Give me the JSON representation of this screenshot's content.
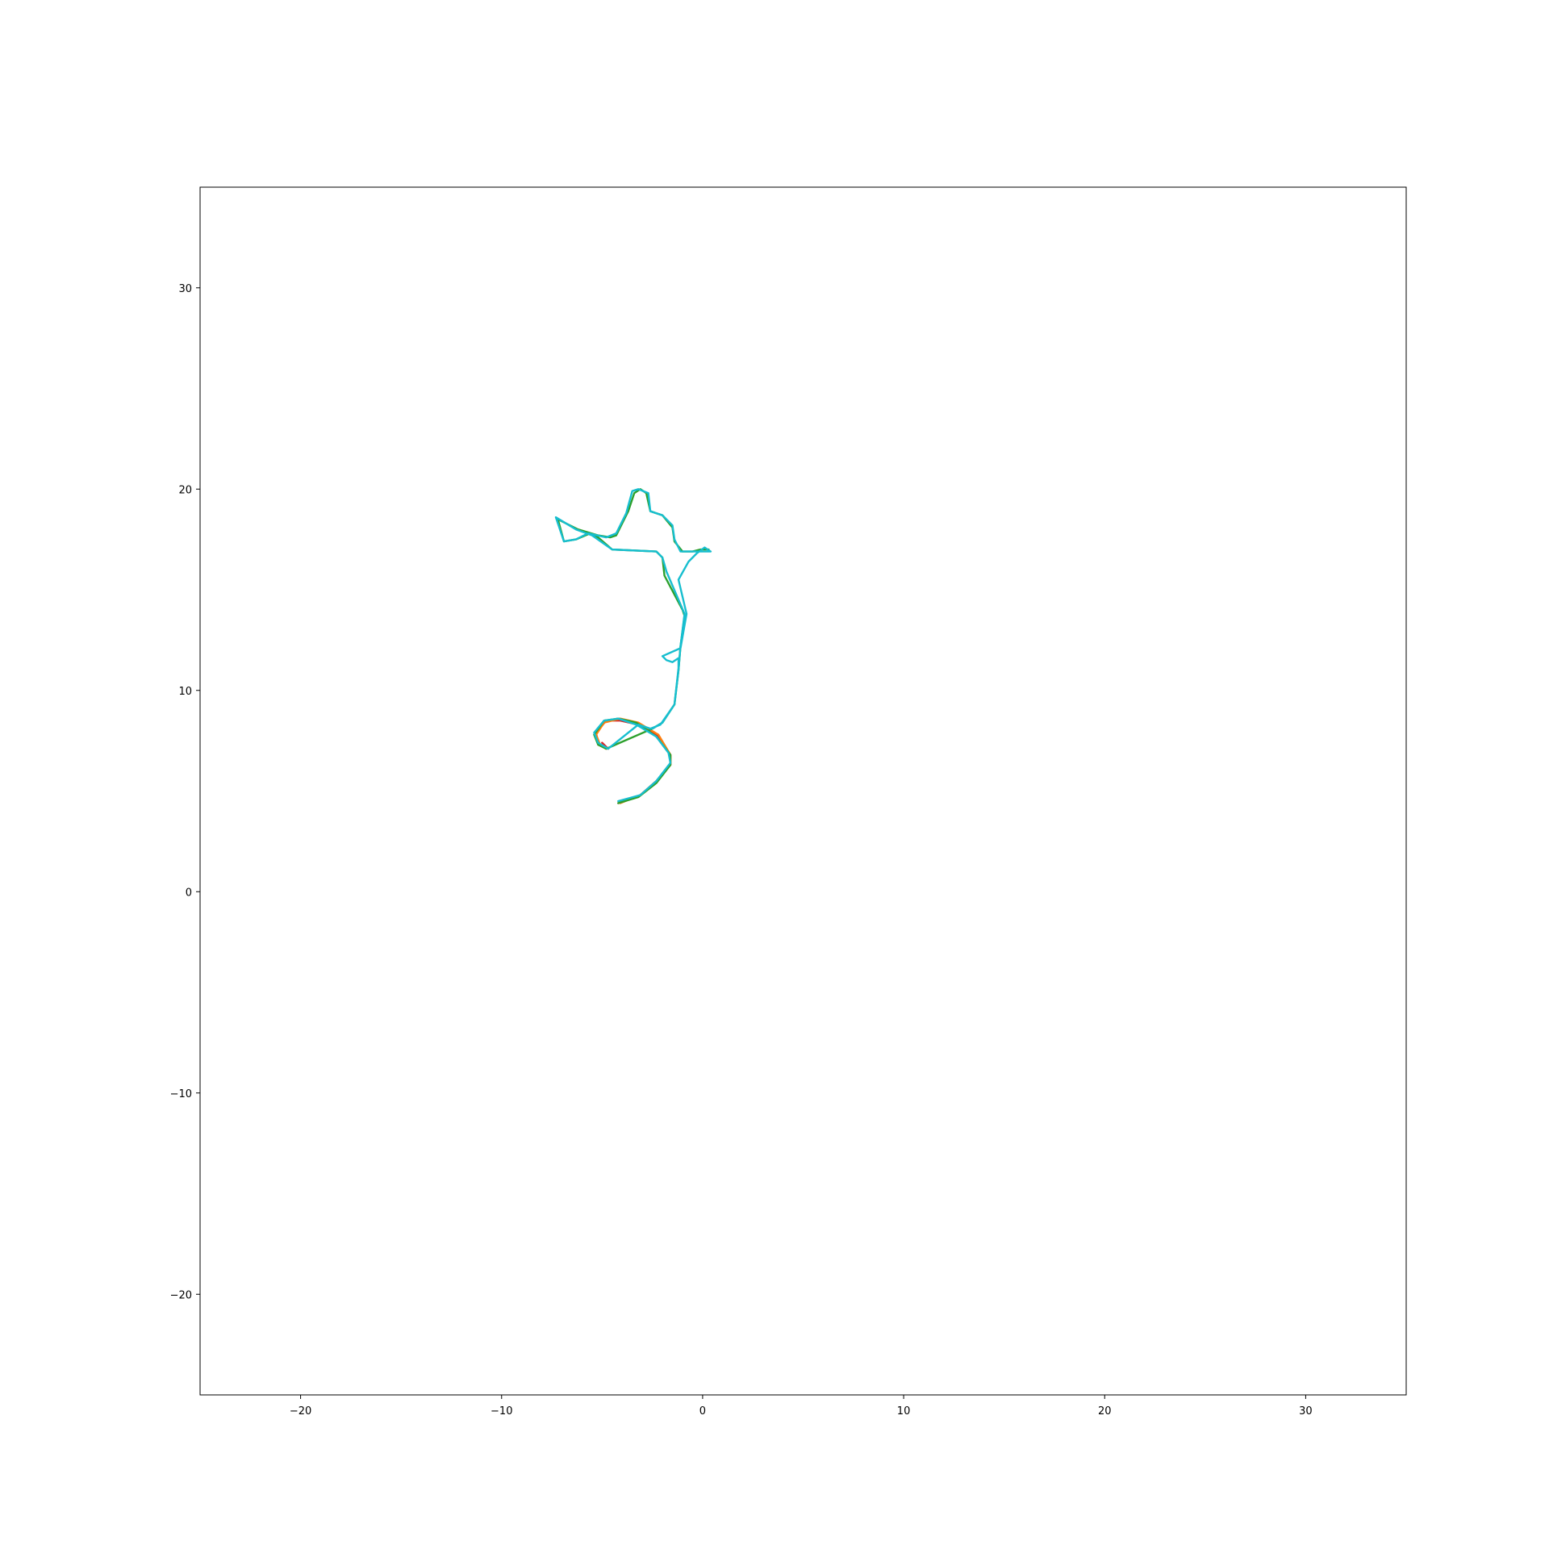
{
  "chart_data": {
    "type": "line",
    "title": "",
    "xlabel": "",
    "ylabel": "",
    "xlim": [
      -25,
      35
    ],
    "ylim": [
      -25,
      35
    ],
    "x_ticks": [
      -20,
      -10,
      0,
      10,
      20,
      30
    ],
    "y_ticks": [
      -20,
      -10,
      0,
      10,
      20,
      30
    ],
    "x_tick_labels": [
      "−20",
      "−10",
      "0",
      "10",
      "20",
      "30"
    ],
    "y_tick_labels": [
      "−20",
      "−10",
      "0",
      "10",
      "20",
      "30"
    ],
    "grid": false,
    "legend": "none",
    "series": [
      {
        "color": "#d62728",
        "points": [
          [
            -4.2,
            4.4
          ],
          [
            -3.1,
            4.8
          ],
          [
            -2.3,
            5.5
          ],
          [
            -1.6,
            6.3
          ],
          [
            -1.6,
            6.8
          ],
          [
            -2.3,
            7.8
          ],
          [
            -3.2,
            8.3
          ],
          [
            -4.1,
            8.5
          ],
          [
            -4.8,
            8.5
          ],
          [
            -5.3,
            7.9
          ],
          [
            -5.2,
            7.3
          ],
          [
            -4.7,
            7.1
          ],
          [
            -5.0,
            7.4
          ]
        ]
      },
      {
        "color": "#ff7f0e",
        "points": [
          [
            -4.1,
            4.4
          ],
          [
            -3.1,
            4.8
          ],
          [
            -2.3,
            5.5
          ],
          [
            -1.6,
            6.3
          ],
          [
            -1.6,
            6.8
          ],
          [
            -2.2,
            7.8
          ],
          [
            -3.2,
            8.4
          ],
          [
            -4.1,
            8.6
          ],
          [
            -4.9,
            8.4
          ],
          [
            -5.3,
            7.8
          ],
          [
            -5.1,
            7.3
          ],
          [
            -4.8,
            7.1
          ]
        ]
      },
      {
        "color": "#2ca02c",
        "points": [
          [
            -4.2,
            4.4
          ],
          [
            -3.2,
            4.7
          ],
          [
            -2.3,
            5.4
          ],
          [
            -1.6,
            6.3
          ],
          [
            -1.6,
            6.8
          ],
          [
            -2.3,
            7.7
          ],
          [
            -3.3,
            8.4
          ],
          [
            -4.2,
            8.6
          ],
          [
            -4.9,
            8.5
          ],
          [
            -5.4,
            7.8
          ],
          [
            -5.2,
            7.3
          ],
          [
            -4.8,
            7.1
          ],
          [
            -2.5,
            8.1
          ],
          [
            -2.0,
            8.4
          ],
          [
            -1.4,
            9.3
          ],
          [
            -1.2,
            11.0
          ],
          [
            -1.1,
            12.2
          ],
          [
            -0.9,
            13.7
          ],
          [
            -1.0,
            14.0
          ],
          [
            -1.9,
            15.7
          ],
          [
            -2.0,
            16.6
          ],
          [
            -2.3,
            16.9
          ],
          [
            -4.5,
            17.0
          ],
          [
            -5.2,
            17.6
          ],
          [
            -5.6,
            17.8
          ],
          [
            -6.3,
            17.5
          ],
          [
            -6.9,
            17.4
          ],
          [
            -7.2,
            18.5
          ],
          [
            -6.2,
            18.0
          ],
          [
            -5.2,
            17.7
          ],
          [
            -4.6,
            17.6
          ],
          [
            -4.3,
            17.7
          ],
          [
            -3.7,
            18.9
          ],
          [
            -3.4,
            19.8
          ],
          [
            -3.1,
            20.0
          ],
          [
            -2.8,
            19.8
          ],
          [
            -2.6,
            18.9
          ],
          [
            -2.0,
            18.7
          ],
          [
            -1.5,
            18.1
          ],
          [
            -1.4,
            17.4
          ],
          [
            -1.0,
            16.9
          ],
          [
            -0.5,
            16.9
          ],
          [
            -0.1,
            17.0
          ],
          [
            0.3,
            17.0
          ]
        ]
      },
      {
        "color": "#17becf",
        "points": [
          [
            -4.2,
            4.5
          ],
          [
            -3.1,
            4.8
          ],
          [
            -2.3,
            5.5
          ],
          [
            -1.6,
            6.4
          ],
          [
            -1.7,
            6.9
          ],
          [
            -2.3,
            7.7
          ],
          [
            -3.3,
            8.3
          ],
          [
            -4.2,
            8.6
          ],
          [
            -4.9,
            8.5
          ],
          [
            -5.4,
            7.9
          ],
          [
            -5.2,
            7.4
          ],
          [
            -4.7,
            7.1
          ],
          [
            -3.2,
            8.3
          ],
          [
            -2.6,
            8.1
          ],
          [
            -2.1,
            8.3
          ],
          [
            -1.4,
            9.3
          ],
          [
            -1.2,
            11.1
          ],
          [
            -1.2,
            11.6
          ],
          [
            -1.5,
            11.4
          ],
          [
            -1.8,
            11.5
          ],
          [
            -2.0,
            11.7
          ],
          [
            -1.1,
            12.1
          ],
          [
            -0.8,
            13.8
          ],
          [
            -1.2,
            15.5
          ],
          [
            -0.7,
            16.4
          ],
          [
            -0.3,
            16.8
          ],
          [
            0.1,
            17.1
          ],
          [
            0.4,
            16.9
          ],
          [
            -0.1,
            16.9
          ],
          [
            -0.6,
            16.9
          ],
          [
            -1.1,
            16.9
          ],
          [
            -1.4,
            17.5
          ],
          [
            -1.5,
            18.2
          ],
          [
            -2.0,
            18.7
          ],
          [
            -2.6,
            18.9
          ],
          [
            -2.7,
            19.8
          ],
          [
            -3.2,
            20.0
          ],
          [
            -3.5,
            19.9
          ],
          [
            -3.8,
            18.8
          ],
          [
            -4.3,
            17.8
          ],
          [
            -4.8,
            17.6
          ],
          [
            -5.7,
            17.8
          ],
          [
            -6.3,
            17.5
          ],
          [
            -6.9,
            17.4
          ],
          [
            -7.3,
            18.6
          ],
          [
            -6.3,
            18.0
          ],
          [
            -5.5,
            17.7
          ],
          [
            -4.5,
            17.0
          ],
          [
            -2.3,
            16.9
          ],
          [
            -2.0,
            16.6
          ],
          [
            -1.8,
            15.9
          ],
          [
            -0.9,
            13.8
          ],
          [
            -1.1,
            12.2
          ],
          [
            -1.2,
            11.0
          ],
          [
            -1.4,
            9.3
          ],
          [
            -2.0,
            8.4
          ],
          [
            -2.5,
            8.1
          ]
        ]
      }
    ]
  }
}
